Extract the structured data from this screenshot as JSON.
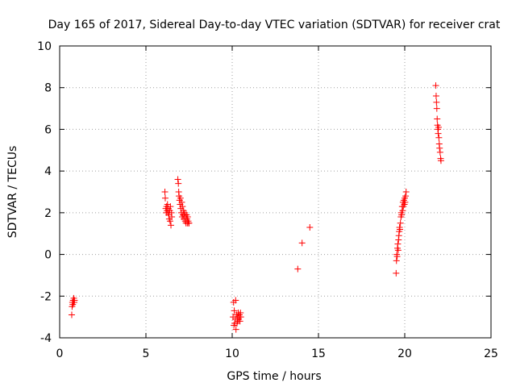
{
  "chart_data": {
    "type": "scatter",
    "title": "Day 165 of 2017, Sidereal Day-to-day VTEC variation (SDTVAR) for receiver crat",
    "xlabel": "GPS time / hours",
    "ylabel": "SDTVAR / TECUs",
    "xlim": [
      0,
      25
    ],
    "ylim": [
      -4,
      10
    ],
    "xticks": [
      "0",
      "5",
      "10",
      "15",
      "20",
      "25"
    ],
    "yticks": [
      "-4",
      "-2",
      "0",
      "2",
      "4",
      "6",
      "8",
      "10"
    ],
    "grid": true,
    "marker": "+",
    "color": "#ff0000",
    "series": [
      {
        "name": "SDTVAR",
        "x": [
          0.7,
          0.72,
          0.74,
          0.76,
          0.78,
          0.8,
          0.82,
          0.84,
          0.86,
          6.1,
          6.12,
          6.15,
          6.18,
          6.2,
          6.22,
          6.25,
          6.28,
          6.3,
          6.32,
          6.35,
          6.38,
          6.4,
          6.42,
          6.45,
          6.48,
          6.5,
          6.85,
          6.88,
          6.9,
          6.92,
          6.95,
          6.98,
          7.0,
          7.02,
          7.05,
          7.08,
          7.1,
          7.12,
          7.15,
          7.18,
          7.2,
          7.22,
          7.25,
          7.28,
          7.3,
          7.32,
          7.35,
          7.38,
          7.4,
          7.42,
          7.45,
          7.48,
          7.5,
          10.05,
          10.08,
          10.1,
          10.12,
          10.15,
          10.18,
          10.2,
          10.22,
          10.25,
          10.28,
          10.3,
          10.32,
          10.35,
          10.38,
          10.4,
          10.42,
          10.45,
          10.48,
          10.5,
          13.8,
          14.05,
          14.5,
          19.5,
          19.52,
          19.54,
          19.56,
          19.58,
          19.6,
          19.62,
          19.64,
          19.66,
          19.68,
          19.7,
          19.72,
          19.75,
          19.78,
          19.8,
          19.82,
          19.85,
          19.88,
          19.9,
          19.92,
          19.95,
          19.98,
          20.0,
          20.02,
          20.05,
          20.08,
          21.8,
          21.82,
          21.84,
          21.86,
          21.88,
          21.9,
          21.92,
          21.94,
          21.96,
          21.98,
          22.0,
          22.02,
          22.05,
          22.08,
          22.1
        ],
        "y": [
          -2.9,
          -2.5,
          -2.3,
          -2.4,
          -2.2,
          -2.3,
          -2.1,
          -2.3,
          -2.2,
          3.0,
          2.7,
          2.2,
          2.0,
          2.3,
          2.1,
          2.4,
          2.0,
          2.2,
          1.9,
          1.7,
          2.1,
          1.6,
          2.3,
          1.4,
          2.0,
          1.8,
          3.6,
          3.4,
          3.0,
          2.8,
          2.6,
          2.4,
          2.7,
          2.2,
          2.0,
          2.5,
          1.8,
          2.3,
          1.9,
          2.1,
          1.7,
          1.9,
          2.0,
          1.6,
          1.8,
          1.5,
          1.9,
          1.7,
          1.5,
          1.8,
          1.6,
          1.5,
          1.5,
          -3.0,
          -2.3,
          -3.4,
          -2.7,
          -3.3,
          -3.1,
          -2.2,
          -3.6,
          -2.9,
          -3.3,
          -3.0,
          -3.2,
          -2.8,
          -3.1,
          -3.0,
          -2.9,
          -3.2,
          -2.8,
          -3.0,
          -0.7,
          0.55,
          1.3,
          -0.9,
          -0.3,
          0.0,
          -0.1,
          0.3,
          0.5,
          0.2,
          0.7,
          0.9,
          1.1,
          1.3,
          1.2,
          1.5,
          1.8,
          2.0,
          1.9,
          2.3,
          2.1,
          2.5,
          2.3,
          2.6,
          2.4,
          2.7,
          2.5,
          2.8,
          3.0,
          8.1,
          7.6,
          7.3,
          7.0,
          6.5,
          6.2,
          6.0,
          5.8,
          6.1,
          5.6,
          5.3,
          5.1,
          4.9,
          4.6,
          4.5
        ]
      }
    ]
  }
}
